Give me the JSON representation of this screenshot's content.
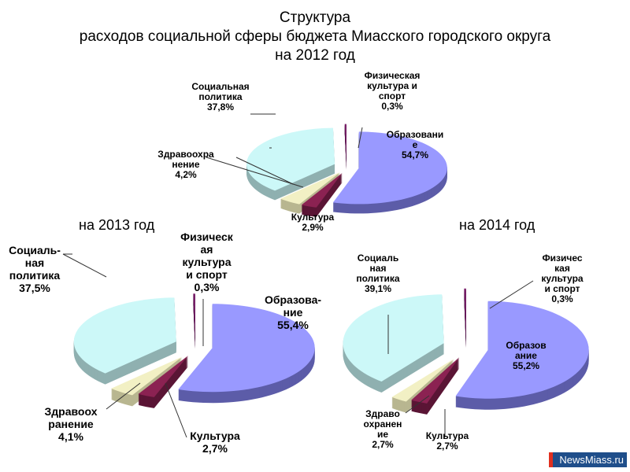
{
  "chart_data": [
    {
      "type": "pie",
      "title": "Структура\nрасходов социальной сферы бюджета Миасского городского округа\nна 2012 год",
      "title_lines": [
        "Структура",
        "расходов социальной сферы бюджета Миасского городского округа",
        "на 2012 год"
      ],
      "categories": [
        "Образование",
        "Культура",
        "Здравоохранение",
        "Социальная политика",
        "Физическая культура и спорт"
      ],
      "values": [
        54.7,
        2.9,
        4.2,
        37.8,
        0.3
      ],
      "labels": [
        "Образовани\nе\n54,7%",
        "Культура\n2,9%",
        "Здравоохра\nнение\n4,2%",
        "Социальная\nполитика\n37,8%",
        "Физическая\nкультура и\nспорт\n0,3%"
      ]
    },
    {
      "type": "pie",
      "title": "на 2013 год",
      "categories": [
        "Образование",
        "Культура",
        "Здравоохранение",
        "Социальная политика",
        "Физическая культура и спорт"
      ],
      "values": [
        55.4,
        2.7,
        4.1,
        37.5,
        0.3
      ],
      "labels": [
        "Образова-\nние\n55,4%",
        "Культура\n2,7%",
        "Здравоох\nранение\n4,1%",
        "Социаль-\nная\nполитика\n37,5%",
        "Физическ\nая\nкультура\nи спорт\n0,3%"
      ]
    },
    {
      "type": "pie",
      "title": "на 2014 год",
      "categories": [
        "Образование",
        "Культура",
        "Здравоохранение",
        "Социальная политика",
        "Физическая культура и спорт"
      ],
      "values": [
        55.2,
        2.7,
        2.7,
        39.1,
        0.3
      ],
      "labels": [
        "Образов\nание\n55,2%",
        "Культура\n2,7%",
        "Здраво\nохранен\nие\n2,7%",
        "Социаль\nная\nполитика\n39,1%",
        "Физичес\nкая\nкультура\nи спорт\n0,3%"
      ]
    }
  ],
  "colors": {
    "top": [
      "#9999ff",
      "#8b2252",
      "#f2f0c4",
      "#ccf8f8",
      "#7a1f6a"
    ],
    "side": [
      "#5c5ca8",
      "#5a1535",
      "#b8b690",
      "#8fb0b0",
      "#4a1040"
    ]
  },
  "watermark": "NewsMiass.ru"
}
